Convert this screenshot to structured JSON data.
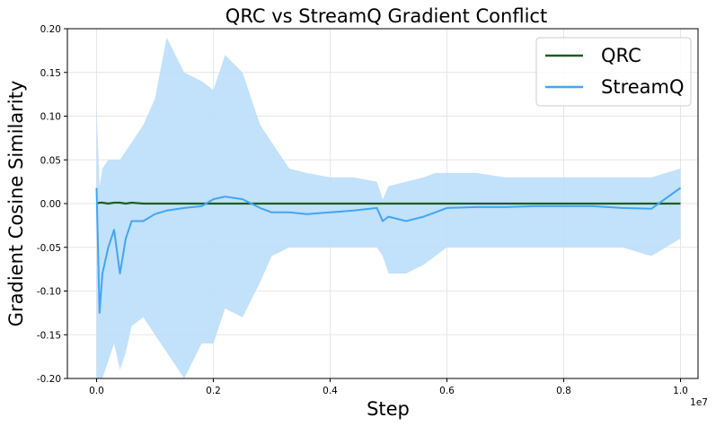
{
  "chart_data": {
    "type": "line",
    "title": "QRC vs StreamQ Gradient Conflict",
    "xlabel": "Step",
    "ylabel": "Gradient Cosine Similarity",
    "x_offset_label": "1e7",
    "xlim": [
      -0.05,
      1.03
    ],
    "ylim": [
      -0.2,
      0.2
    ],
    "x_ticks": [
      0.0,
      0.2,
      0.4,
      0.6,
      0.8,
      1.0
    ],
    "x_tick_labels": [
      "0.0",
      "0.2",
      "0.4",
      "0.6",
      "0.8",
      "1.0"
    ],
    "y_ticks": [
      -0.2,
      -0.15,
      -0.1,
      -0.05,
      0.0,
      0.05,
      0.1,
      0.15,
      0.2
    ],
    "y_tick_labels": [
      "-0.20",
      "-0.15",
      "-0.10",
      "-0.05",
      "0.00",
      "0.05",
      "0.10",
      "0.15",
      "0.20"
    ],
    "grid": true,
    "legend_position": "top-right",
    "x": [
      0.0,
      0.005,
      0.01,
      0.02,
      0.03,
      0.04,
      0.05,
      0.06,
      0.08,
      0.1,
      0.12,
      0.15,
      0.18,
      0.2,
      0.22,
      0.25,
      0.28,
      0.3,
      0.33,
      0.36,
      0.4,
      0.44,
      0.48,
      0.49,
      0.5,
      0.53,
      0.56,
      0.58,
      0.6,
      0.65,
      0.7,
      0.75,
      0.8,
      0.85,
      0.9,
      0.95,
      1.0
    ],
    "series": [
      {
        "name": "QRC",
        "color": "#1b5e20",
        "values": [
          0.0,
          0.001,
          0.001,
          0.0,
          0.001,
          0.001,
          0.0,
          0.001,
          0.0,
          0.0,
          0.0,
          0.0,
          0.0,
          0.0,
          0.0,
          0.0,
          0.0,
          0.0,
          0.0,
          0.0,
          0.0,
          0.0,
          0.0,
          0.0,
          0.0,
          0.0,
          0.0,
          0.0,
          0.0,
          0.0,
          0.0,
          0.0,
          0.0,
          0.0,
          0.0,
          0.0,
          0.0
        ]
      },
      {
        "name": "StreamQ",
        "color": "#42a5f5",
        "values": [
          0.018,
          -0.125,
          -0.08,
          -0.05,
          -0.03,
          -0.08,
          -0.04,
          -0.02,
          -0.02,
          -0.012,
          -0.008,
          -0.005,
          -0.003,
          0.005,
          0.008,
          0.005,
          -0.005,
          -0.01,
          -0.01,
          -0.012,
          -0.01,
          -0.008,
          -0.005,
          -0.02,
          -0.015,
          -0.02,
          -0.015,
          -0.01,
          -0.005,
          -0.004,
          -0.004,
          -0.003,
          -0.003,
          -0.003,
          -0.005,
          -0.006,
          0.018
        ]
      }
    ],
    "band": {
      "series": "StreamQ",
      "color": "#bbdefb",
      "upper": [
        0.11,
        0.02,
        0.04,
        0.05,
        0.05,
        0.05,
        0.06,
        0.07,
        0.09,
        0.12,
        0.19,
        0.15,
        0.14,
        0.13,
        0.17,
        0.15,
        0.09,
        0.07,
        0.04,
        0.035,
        0.03,
        0.03,
        0.025,
        0.005,
        0.02,
        0.025,
        0.03,
        0.035,
        0.035,
        0.035,
        0.03,
        0.03,
        0.03,
        0.03,
        0.03,
        0.03,
        0.04
      ],
      "lower": [
        -0.2,
        -0.2,
        -0.2,
        -0.18,
        -0.16,
        -0.19,
        -0.17,
        -0.14,
        -0.13,
        -0.15,
        -0.17,
        -0.2,
        -0.16,
        -0.16,
        -0.12,
        -0.13,
        -0.09,
        -0.06,
        -0.05,
        -0.05,
        -0.05,
        -0.05,
        -0.05,
        -0.06,
        -0.08,
        -0.08,
        -0.07,
        -0.06,
        -0.05,
        -0.05,
        -0.05,
        -0.05,
        -0.05,
        -0.05,
        -0.05,
        -0.06,
        -0.04
      ]
    }
  }
}
